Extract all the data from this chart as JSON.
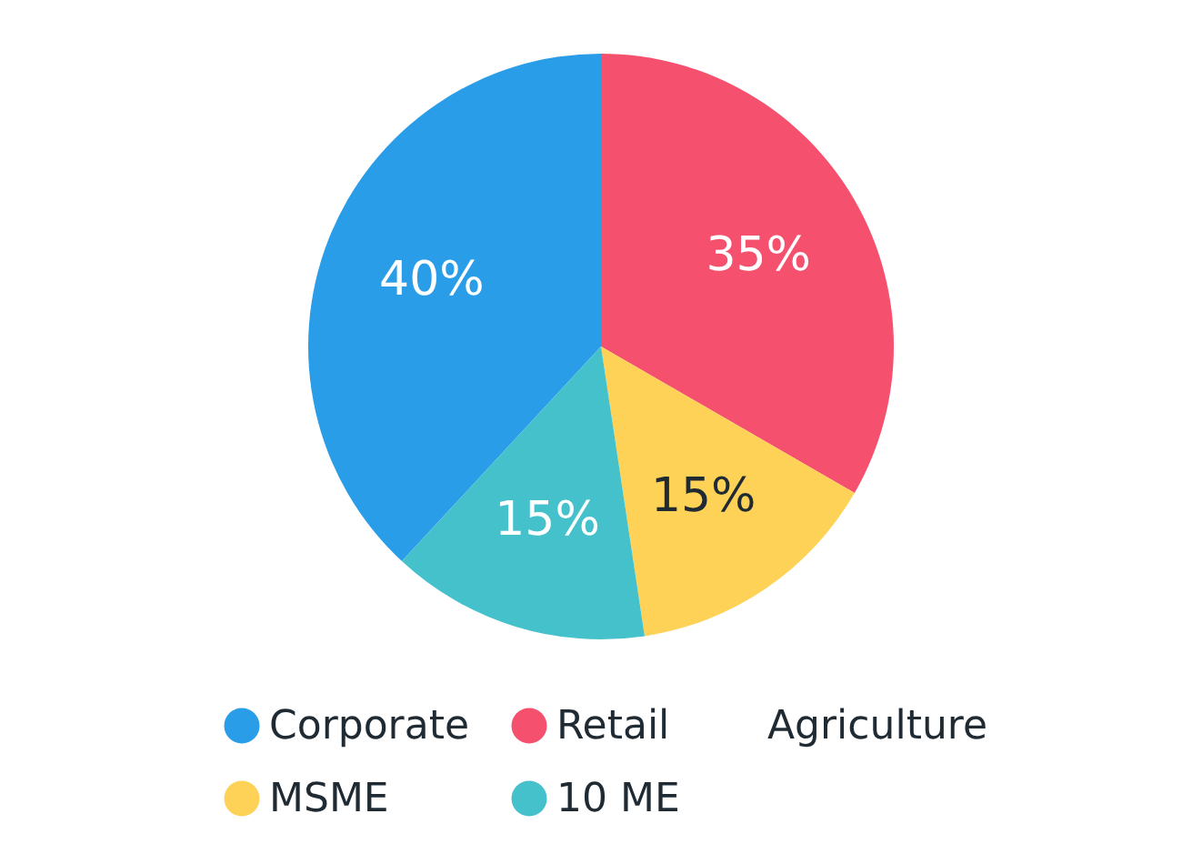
{
  "chart_data": {
    "type": "pie",
    "categories": [
      "Corporate",
      "Retail",
      "Agriculture",
      "MSME",
      "10 ME"
    ],
    "values": [
      40,
      35,
      null,
      15,
      15
    ],
    "colors": [
      "#2a9de8",
      "#f5506e",
      null,
      "#fdd257",
      "#45c1cc"
    ],
    "value_labels": [
      "40%",
      "35%",
      null,
      "15%",
      "15%"
    ],
    "legend": "bottom"
  }
}
